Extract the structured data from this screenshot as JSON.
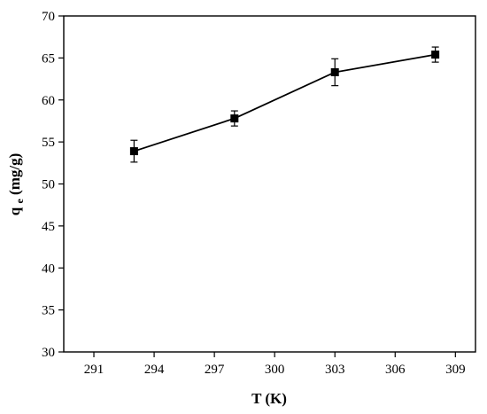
{
  "chart_data": {
    "type": "line",
    "title": "",
    "xlabel": "T (K)",
    "ylabel": {
      "main": "q",
      "sub": "e",
      "unit": " (mg/g)"
    },
    "xlim": [
      289.5,
      310
    ],
    "ylim": [
      30,
      70
    ],
    "x_ticks": [
      291,
      294,
      297,
      300,
      303,
      306,
      309
    ],
    "y_ticks": [
      30,
      35,
      40,
      45,
      50,
      55,
      60,
      65,
      70
    ],
    "grid": false,
    "legend": "none",
    "marker": "square",
    "color": "#000000",
    "series": [
      {
        "x": [
          293,
          298,
          303,
          308
        ],
        "y": [
          53.9,
          57.8,
          63.3,
          65.4
        ],
        "error": [
          1.3,
          0.9,
          1.6,
          0.9
        ]
      }
    ]
  }
}
